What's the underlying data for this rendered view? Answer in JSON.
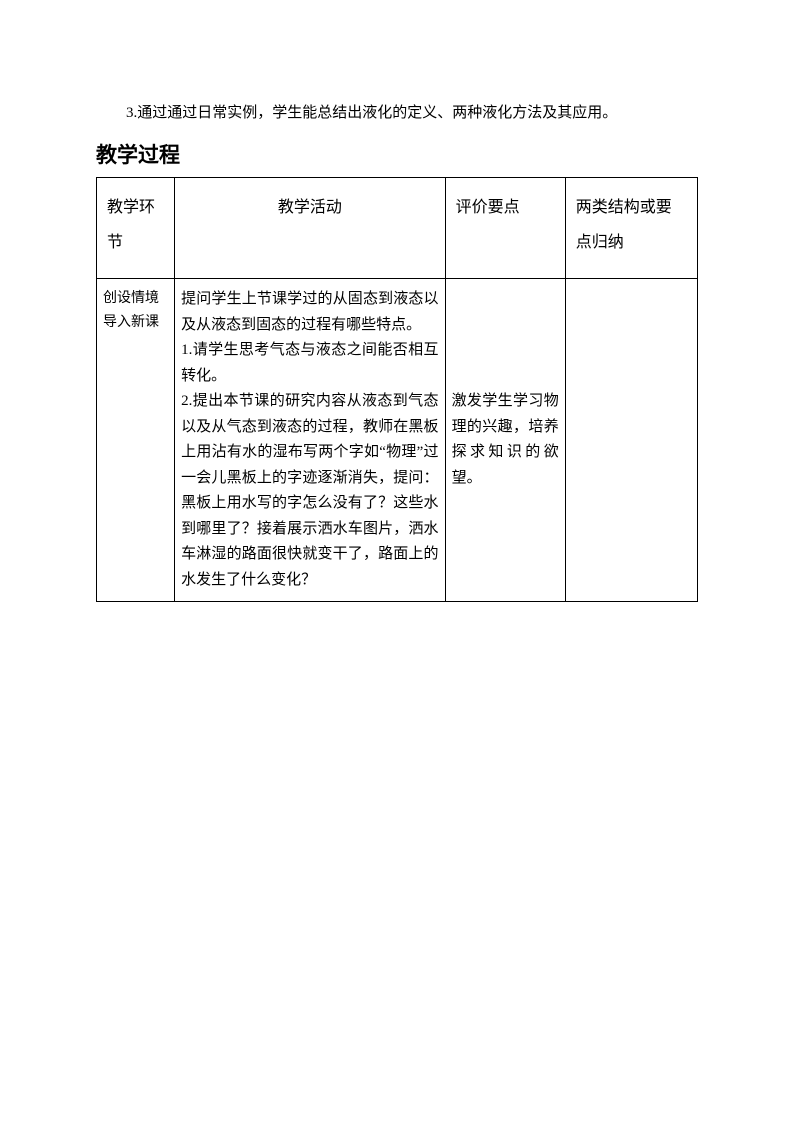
{
  "intro": "3.通过通过日常实例，学生能总结出液化的定义、两种液化方法及其应用。",
  "section_title": "教学过程",
  "table": {
    "headers": {
      "col1": "教学环节",
      "col2": "教学活动",
      "col3": "评价要点",
      "col4": "两类结构或要点归纳"
    },
    "row1": {
      "col1": "创设情境导入新课",
      "col2": "提问学生上节课学过的从固态到液态以及从液态到固态的过程有哪些特点。\n1.请学生思考气态与液态之间能否相互转化。\n2.提出本节课的研究内容从液态到气态以及从气态到液态的过程，教师在黑板上用沾有水的湿布写两个字如“物理”过一会儿黑板上的字迹逐渐消失，提问：黑板上用水写的字怎么没有了？这些水到哪里了？接着展示洒水车图片，洒水车淋湿的路面很快就变干了，路面上的水发生了什么变化？",
      "col3": "激发学生学习物理的兴趣，培养探求知识的欲望。",
      "col4": ""
    }
  },
  "colors": {
    "text": "#000000",
    "background": "#ffffff",
    "border": "#000000"
  },
  "fonts": {
    "body_size": 15,
    "title_size": 21,
    "header_size": 16
  }
}
